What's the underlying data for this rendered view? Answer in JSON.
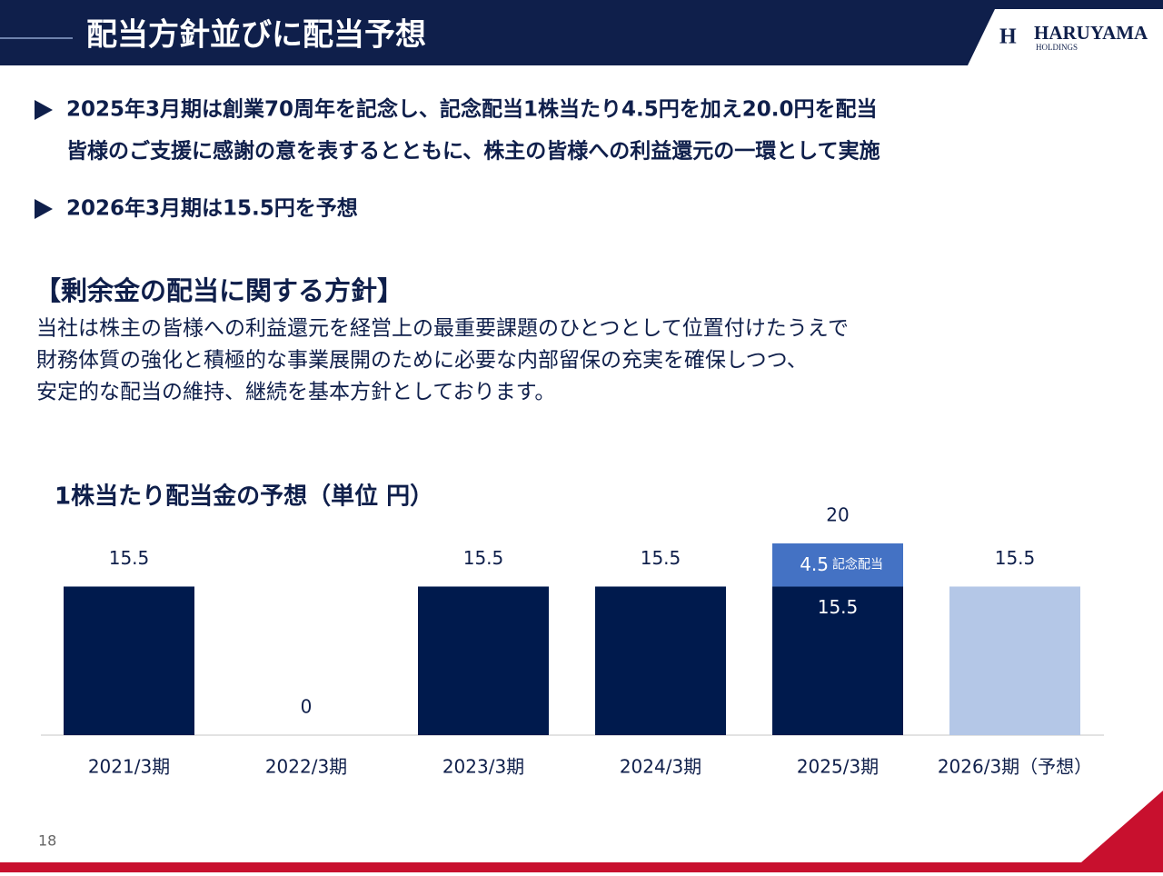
{
  "header": {
    "title": "配当方針並びに配当予想",
    "logo": "HARUYAMA",
    "logo_sub": "HOLDINGS"
  },
  "bullets": [
    {
      "lines": [
        "2025年3月期は創業70周年を記念し、記念配当1株当たり4.5円を加え20.0円を配当",
        "皆様のご支援に感謝の意を表するとともに、株主の皆様への利益還元の一環として実施"
      ]
    },
    {
      "lines": [
        "2026年3月期は15.5円を予想"
      ]
    }
  ],
  "policy": {
    "heading": "【剰余金の配当に関する方針】",
    "lines": [
      "当社は株主の皆様への利益還元を経営上の最重要課題のひとつとして位置付けたうえで",
      "財務体質の強化と積極的な事業展開のために必要な内部留保の充実を確保しつつ、",
      "安定的な配当の維持、継続を基本方針としております。"
    ]
  },
  "chart_data": {
    "type": "bar",
    "stacked": true,
    "title": "1株当たり配当金の予想（単位 円）",
    "categories": [
      "2021/3期",
      "2022/3期",
      "2023/3期",
      "2024/3期",
      "2025/3期",
      "2026/3期（予想）"
    ],
    "series": [
      {
        "colors": [
          "#001a4d",
          "#001a4d",
          "#001a4d",
          "#001a4d",
          "#001a4d",
          "#b4c7e7"
        ],
        "values": [
          15.5,
          0,
          15.5,
          15.5,
          15.5,
          15.5
        ]
      },
      {
        "name": "記念配当",
        "color": "#4472c4",
        "values": [
          null,
          null,
          null,
          null,
          4.5,
          null
        ]
      }
    ],
    "totals": [
      15.5,
      0,
      15.5,
      15.5,
      20,
      15.5
    ],
    "ylim": [
      0,
      20
    ]
  },
  "page_number": "18"
}
